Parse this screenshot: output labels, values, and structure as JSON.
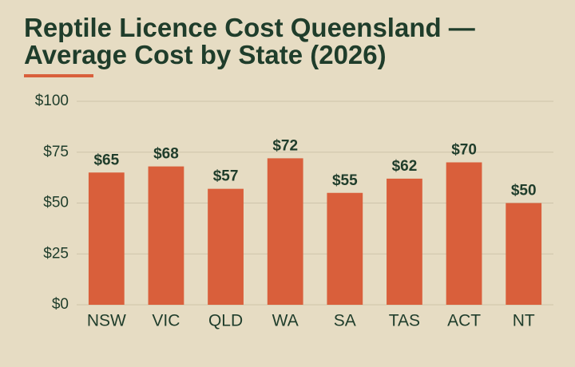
{
  "chart_data": {
    "type": "bar",
    "title": "Reptile Licence Cost Queensland — Average Cost by State (2026)",
    "categories": [
      "NSW",
      "VIC",
      "QLD",
      "WA",
      "SA",
      "TAS",
      "ACT",
      "NT"
    ],
    "values": [
      65,
      68,
      57,
      72,
      55,
      62,
      70,
      50
    ],
    "value_labels": [
      "$65",
      "$68",
      "$57",
      "$72",
      "$55",
      "$62",
      "$70",
      "$50"
    ],
    "color": "#d95f3b",
    "ylim": [
      0,
      100
    ],
    "yticks": [
      {
        "value": 0,
        "label": "$0"
      },
      {
        "value": 25,
        "label": "$25"
      },
      {
        "value": 50,
        "label": "$50"
      },
      {
        "value": 75,
        "label": "$75"
      },
      {
        "value": 100,
        "label": "$100"
      }
    ],
    "grid": true
  }
}
